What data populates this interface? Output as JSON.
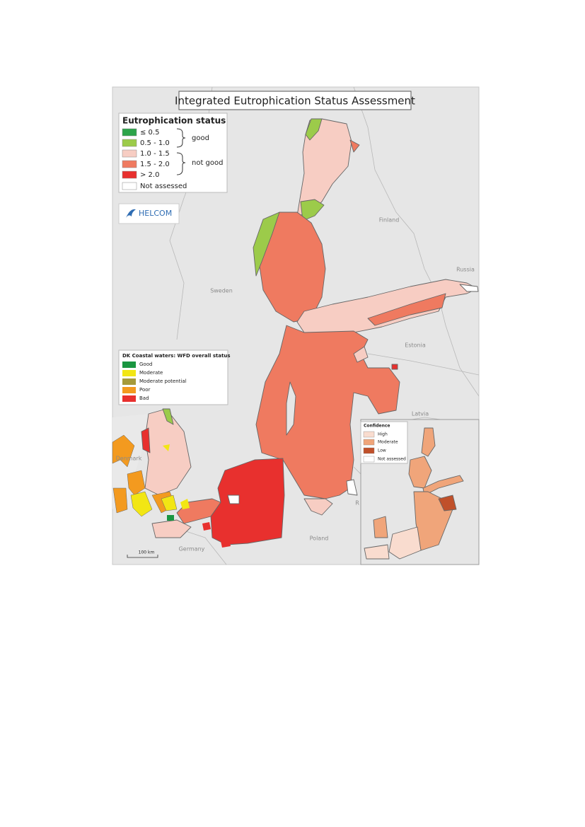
{
  "title": "Integrated Eutrophication Status Assessment",
  "legend": {
    "title": "Eutrophication status",
    "items": [
      {
        "label": "≤ 0.5",
        "color": "#2ca44a"
      },
      {
        "label": "0.5 - 1.0",
        "color": "#9ccb4a"
      },
      {
        "label": "1.0 - 1.5",
        "color": "#f7cdc3"
      },
      {
        "label": "1.5 - 2.0",
        "color": "#ef7a60"
      },
      {
        "label": "> 2.0",
        "color": "#e8302e"
      },
      {
        "label": "Not assessed",
        "color": "#ffffff"
      }
    ],
    "groups": [
      "good",
      "not good"
    ]
  },
  "logo": "HELCOM",
  "dk_legend": {
    "title": "DK Coastal waters: WFD overall status",
    "items": [
      {
        "label": "Good",
        "color": "#1a9641"
      },
      {
        "label": "Moderate",
        "color": "#f2e614"
      },
      {
        "label": "Moderate potential",
        "color": "#a69a3a"
      },
      {
        "label": "Poor",
        "color": "#f39a1f"
      },
      {
        "label": "Bad",
        "color": "#e8302e"
      }
    ]
  },
  "confidence_legend": {
    "title": "Confidence",
    "items": [
      {
        "label": "High",
        "color": "#f9dccf"
      },
      {
        "label": "Moderate",
        "color": "#f0a57a"
      },
      {
        "label": "Low",
        "color": "#c0502a"
      },
      {
        "label": "Not assessed",
        "color": "#ffffff"
      }
    ]
  },
  "labels": [
    "Finland",
    "Russia",
    "Sweden",
    "Estonia",
    "Latvia",
    "Denmark",
    "Germany",
    "Poland",
    "R"
  ],
  "scale_bar": "100 km"
}
